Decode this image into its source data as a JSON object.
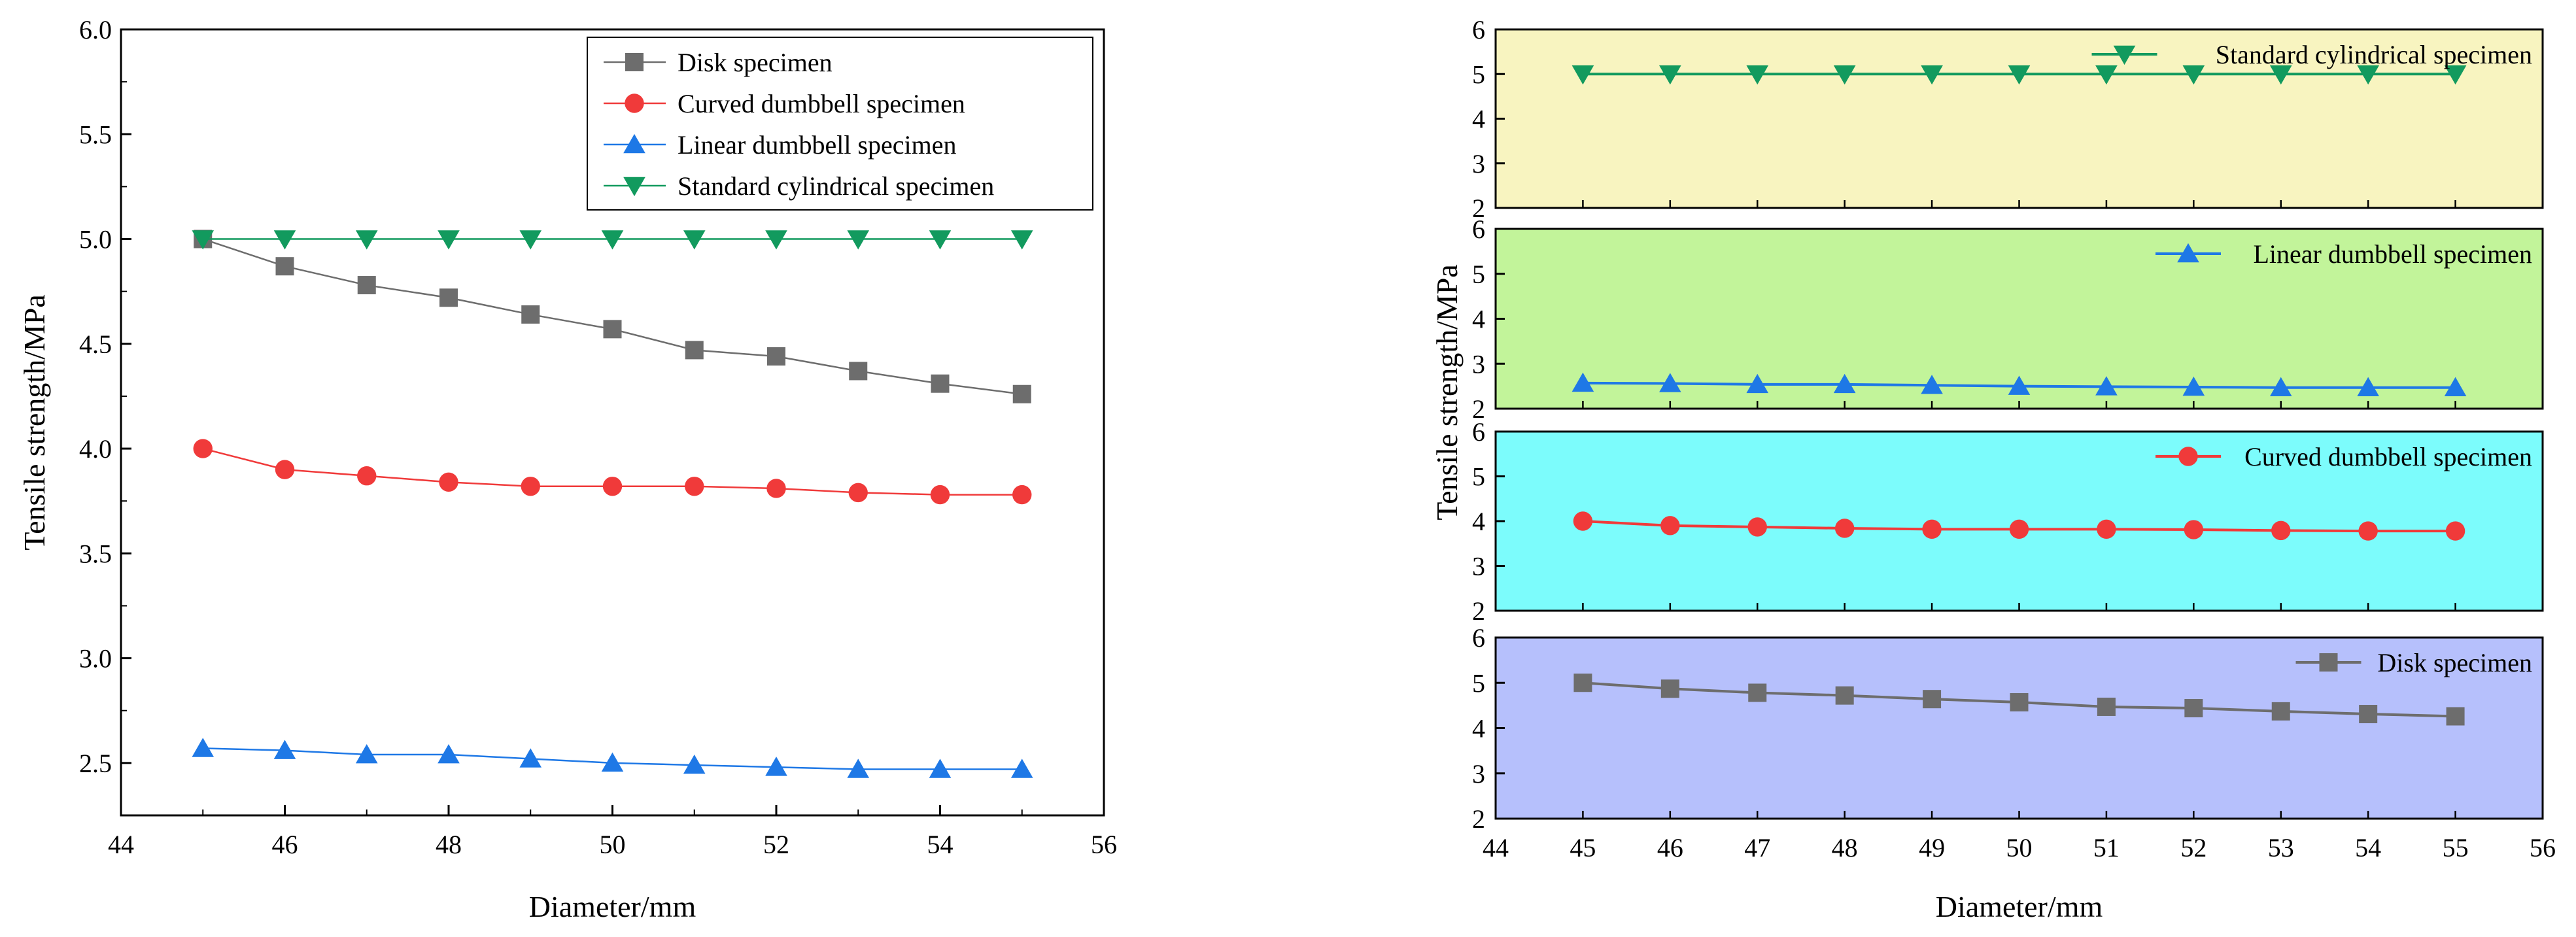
{
  "chart_data": [
    {
      "type": "line",
      "xlabel": "Diameter/mm",
      "ylabel": "Tensile strength/MPa",
      "xlim": [
        44,
        56
      ],
      "ylim": [
        2.25,
        6.0
      ],
      "x_ticks": [
        "44",
        "46",
        "48",
        "50",
        "52",
        "54",
        "56"
      ],
      "y_ticks": [
        "2.5",
        "3.0",
        "3.5",
        "4.0",
        "4.5",
        "5.0",
        "5.5",
        "6.0"
      ],
      "legend_position": "top-right",
      "x": [
        45,
        46,
        47,
        48,
        49,
        50,
        51,
        52,
        53,
        54,
        55
      ],
      "series": [
        {
          "name": "Disk specimen",
          "marker": "square",
          "color": "#6d6d6d",
          "values": [
            5.0,
            4.87,
            4.78,
            4.72,
            4.64,
            4.57,
            4.47,
            4.44,
            4.37,
            4.31,
            4.26
          ]
        },
        {
          "name": "Curved dumbbell specimen",
          "marker": "circle",
          "color": "#f03a3a",
          "values": [
            4.0,
            3.9,
            3.87,
            3.84,
            3.82,
            3.82,
            3.82,
            3.81,
            3.79,
            3.78,
            3.78
          ]
        },
        {
          "name": "Linear dumbbell specimen",
          "marker": "triangle-up",
          "color": "#1e78e6",
          "values": [
            2.57,
            2.56,
            2.54,
            2.54,
            2.52,
            2.5,
            2.49,
            2.48,
            2.47,
            2.47,
            2.47
          ]
        },
        {
          "name": "Standard cylindrical specimen",
          "marker": "triangle-down",
          "color": "#129a5e",
          "values": [
            5.0,
            5.0,
            5.0,
            5.0,
            5.0,
            5.0,
            5.0,
            5.0,
            5.0,
            5.0,
            5.0
          ]
        }
      ]
    },
    {
      "type": "line",
      "layout": "stacked-panels",
      "xlabel": "Diameter/mm",
      "ylabel": "Tensile strength/MPa",
      "xlim": [
        44,
        56
      ],
      "x_ticks": [
        "44",
        "45",
        "46",
        "47",
        "48",
        "49",
        "50",
        "51",
        "52",
        "53",
        "54",
        "55",
        "56"
      ],
      "x": [
        45,
        46,
        47,
        48,
        49,
        50,
        51,
        52,
        53,
        54,
        55
      ],
      "panels": [
        {
          "name": "Standard cylindrical specimen",
          "marker": "triangle-down",
          "color": "#129a5e",
          "background": "#f8f4c0",
          "ylim": [
            2,
            6
          ],
          "y_ticks": [
            "2",
            "3",
            "4",
            "5",
            "6"
          ],
          "values": [
            5.0,
            5.0,
            5.0,
            5.0,
            5.0,
            5.0,
            5.0,
            5.0,
            5.0,
            5.0,
            5.0
          ]
        },
        {
          "name": "Linear dumbbell specimen",
          "marker": "triangle-up",
          "color": "#1e78e6",
          "background": "#c2f49a",
          "ylim": [
            2,
            6
          ],
          "y_ticks": [
            "2",
            "3",
            "4",
            "5",
            "6"
          ],
          "values": [
            2.57,
            2.56,
            2.54,
            2.54,
            2.52,
            2.5,
            2.49,
            2.48,
            2.47,
            2.47,
            2.47
          ]
        },
        {
          "name": "Curved dumbbell specimen",
          "marker": "circle",
          "color": "#f03a3a",
          "background": "#7cfcfc",
          "ylim": [
            2,
            6
          ],
          "y_ticks": [
            "2",
            "3",
            "4",
            "5",
            "6"
          ],
          "values": [
            4.0,
            3.9,
            3.87,
            3.84,
            3.82,
            3.82,
            3.82,
            3.81,
            3.79,
            3.78,
            3.78
          ]
        },
        {
          "name": "Disk specimen",
          "marker": "square",
          "color": "#6d6d6d",
          "background": "#b6c0fc",
          "ylim": [
            2,
            6
          ],
          "y_ticks": [
            "2",
            "3",
            "4",
            "5",
            "6"
          ],
          "values": [
            5.0,
            4.87,
            4.78,
            4.72,
            4.64,
            4.57,
            4.47,
            4.44,
            4.37,
            4.31,
            4.26
          ]
        }
      ]
    }
  ]
}
